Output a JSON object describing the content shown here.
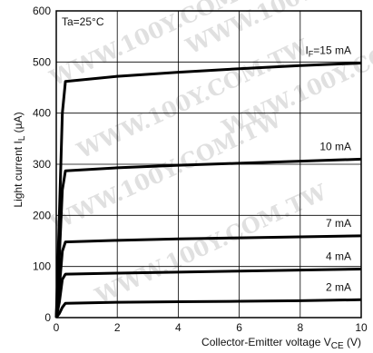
{
  "chart_data": {
    "type": "line",
    "annotation": "Ta=25°C",
    "xlabel": "Collector-Emitter voltage V",
    "xlabel_sub": "CE",
    "xlabel_unit": " (V)",
    "ylabel": "Light current I",
    "ylabel_sub": "L",
    "ylabel_unit": " (µA)",
    "xlim": [
      0,
      10
    ],
    "ylim": [
      0,
      600
    ],
    "xticks": [
      0,
      2,
      4,
      6,
      8,
      10
    ],
    "yticks": [
      0,
      100,
      200,
      300,
      400,
      500,
      600
    ],
    "grid": true,
    "watermark": "WWW.100Y.COM.TW",
    "series": [
      {
        "name": "2 mA",
        "label_prefix": "",
        "label_sub": "",
        "label_value": "2 mA",
        "x": [
          0,
          0.1,
          0.2,
          0.3,
          2,
          4,
          6,
          8,
          10
        ],
        "y": [
          0,
          8,
          20,
          28,
          30,
          31,
          32,
          33,
          35
        ]
      },
      {
        "name": "4 mA",
        "label_prefix": "",
        "label_sub": "",
        "label_value": "4 mA",
        "x": [
          0,
          0.1,
          0.2,
          0.3,
          2,
          4,
          6,
          8,
          10
        ],
        "y": [
          0,
          30,
          75,
          85,
          87,
          89,
          91,
          93,
          95
        ]
      },
      {
        "name": "7 mA",
        "label_prefix": "",
        "label_sub": "",
        "label_value": "7 mA",
        "x": [
          0,
          0.1,
          0.2,
          0.3,
          2,
          4,
          6,
          8,
          10
        ],
        "y": [
          0,
          60,
          130,
          148,
          151,
          154,
          156,
          158,
          160
        ]
      },
      {
        "name": "10 mA",
        "label_prefix": "",
        "label_sub": "",
        "label_value": "10 mA",
        "x": [
          0,
          0.1,
          0.2,
          0.3,
          2,
          4,
          6,
          8,
          10
        ],
        "y": [
          0,
          120,
          250,
          287,
          293,
          298,
          302,
          306,
          310
        ]
      },
      {
        "name": "IF=15 mA",
        "label_prefix": "I",
        "label_sub": "F",
        "label_value": "=15 mA",
        "x": [
          0,
          0.1,
          0.2,
          0.3,
          2,
          4,
          6,
          8,
          10
        ],
        "y": [
          0,
          200,
          400,
          462,
          472,
          480,
          487,
          493,
          498
        ]
      }
    ]
  }
}
